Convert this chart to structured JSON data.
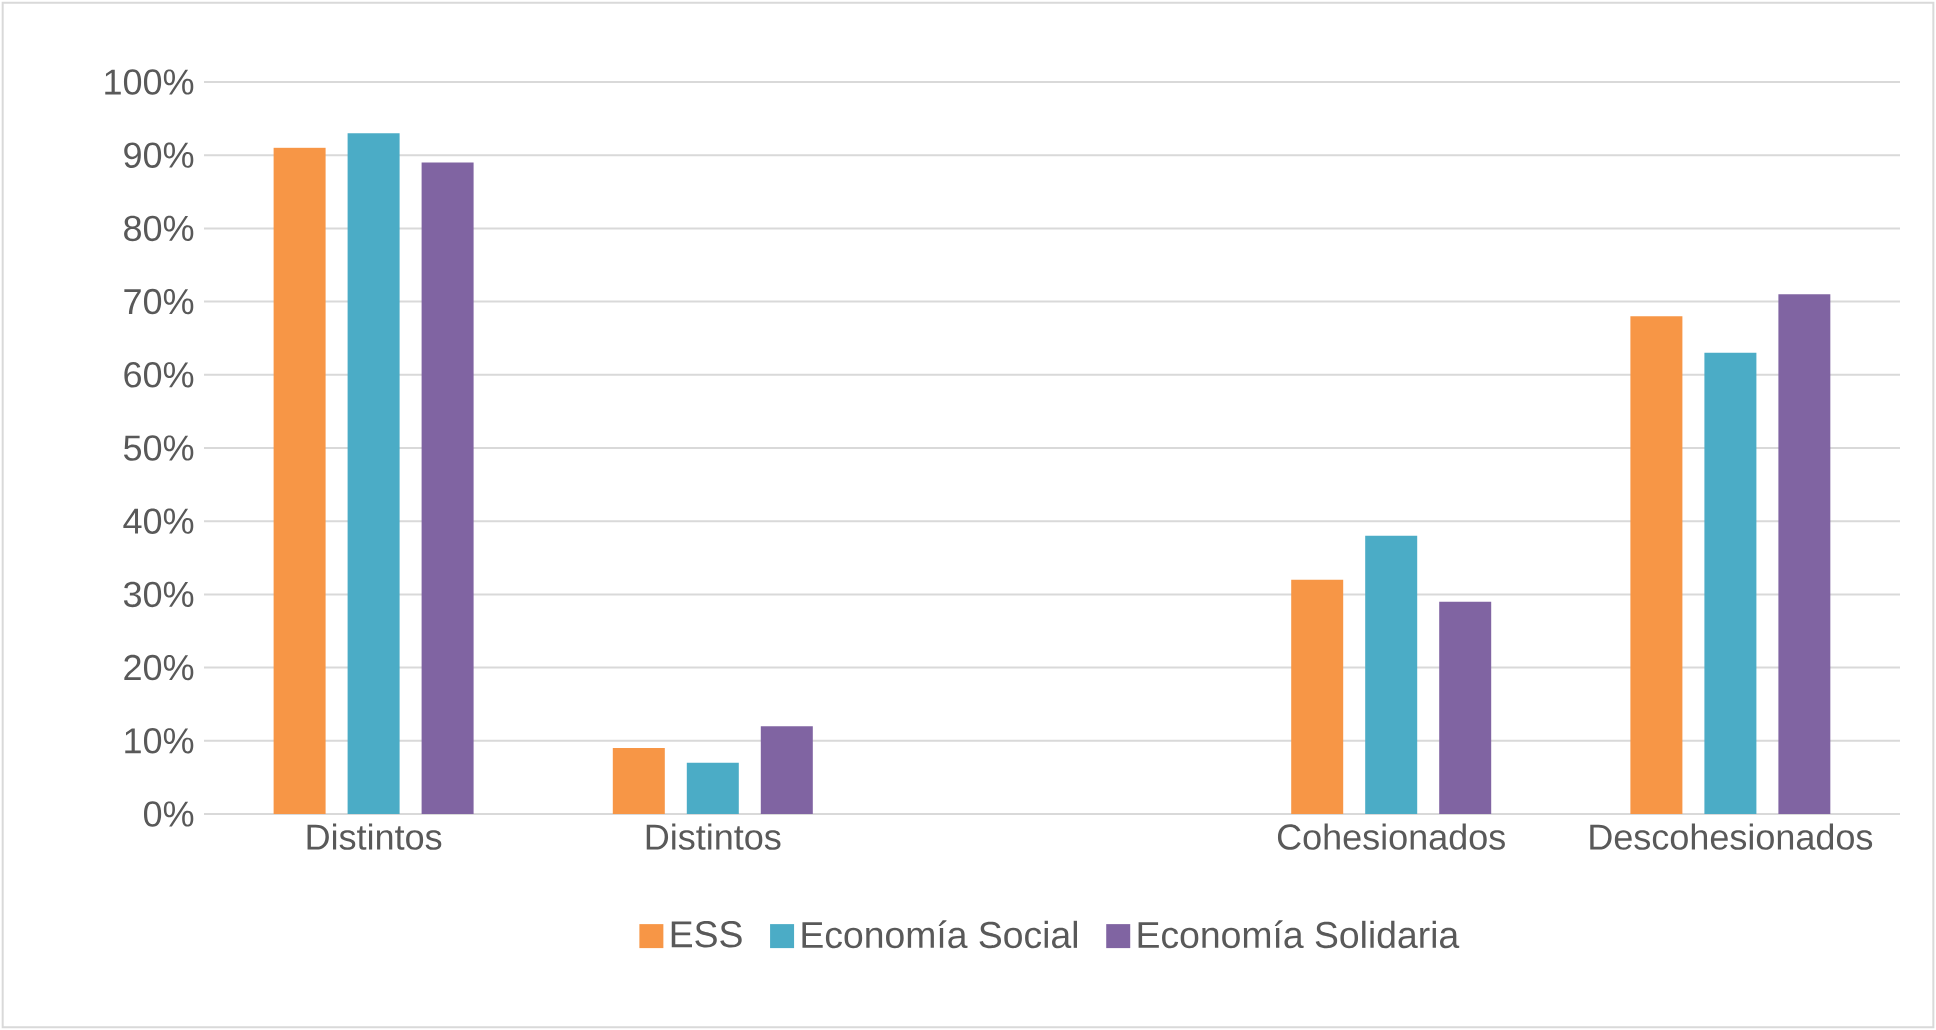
{
  "chart_data": {
    "type": "bar",
    "categories": [
      "Distintos",
      "Distintos",
      null,
      "Cohesionados",
      "Descohesionados"
    ],
    "series": [
      {
        "name": "ESS",
        "color": "#f79646",
        "values": [
          91,
          9,
          null,
          32,
          68
        ]
      },
      {
        "name": "Economía Social",
        "color": "#4bacc6",
        "values": [
          93,
          7,
          null,
          38,
          63
        ]
      },
      {
        "name": "Economía Solidaria",
        "color": "#8064a2",
        "values": [
          89,
          12,
          null,
          29,
          71
        ]
      }
    ],
    "ylim": [
      0,
      100
    ],
    "yticks": [
      {
        "value": 0,
        "label": "0%"
      },
      {
        "value": 10,
        "label": "10%"
      },
      {
        "value": 20,
        "label": "20%"
      },
      {
        "value": 30,
        "label": "30%"
      },
      {
        "value": 40,
        "label": "40%"
      },
      {
        "value": 50,
        "label": "50%"
      },
      {
        "value": 60,
        "label": "60%"
      },
      {
        "value": 70,
        "label": "70%"
      },
      {
        "value": 80,
        "label": "80%"
      },
      {
        "value": 90,
        "label": "90%"
      },
      {
        "value": 100,
        "label": "100%"
      }
    ],
    "grid": "y",
    "legend": "bottom"
  }
}
